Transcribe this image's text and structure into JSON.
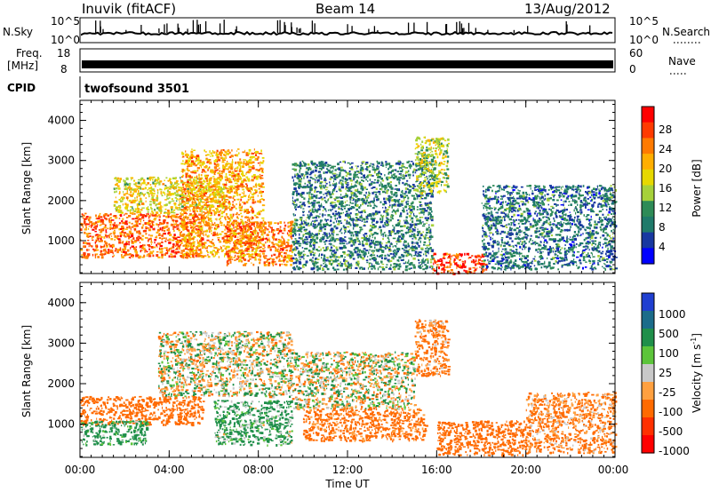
{
  "header": {
    "station": "Inuvik (fitACF)",
    "beam": "Beam 14",
    "date": "13/Aug/2012"
  },
  "top_panels": {
    "nsky_label": "N.Sky",
    "nsky_ticks": [
      "10^5",
      "10^0"
    ],
    "nsearch_label": "N.Search",
    "nsearch_ticks": [
      "10^5",
      "10^0"
    ],
    "freq_label": "Freq.",
    "freq_unit": "[MHz]",
    "freq_ticks": [
      "18",
      "8"
    ],
    "nave_label": "Nave",
    "nave_ticks": [
      "60",
      "0"
    ],
    "cpid_label": "CPID",
    "cpid_value": "twofsound 3501"
  },
  "x_axis": {
    "label": "Time UT",
    "ticks": [
      "00:00",
      "04:00",
      "08:00",
      "12:00",
      "16:00",
      "20:00",
      "00:00"
    ]
  },
  "y_axis": {
    "label": "Slant Range [km]",
    "ticks": [
      "4000",
      "3000",
      "2000",
      "1000"
    ]
  },
  "power_scale": {
    "label": "Power [dB]",
    "ticks": [
      "28",
      "24",
      "20",
      "16",
      "12",
      "8",
      "4"
    ],
    "colors": [
      "#ff0000",
      "#ff3a00",
      "#ff7a00",
      "#ffae00",
      "#e6d800",
      "#a6d13a",
      "#2e8b57",
      "#1f7a6a",
      "#1838a0",
      "#0000ff"
    ]
  },
  "velocity_scale": {
    "label": "Velocity [m s",
    "label_sup": "-1",
    "label_end": "]",
    "ticks": [
      "1000",
      "500",
      "100",
      "25",
      "-25",
      "-100",
      "-500",
      "-1000"
    ],
    "colors": [
      "#1f3fd0",
      "#1b6c8a",
      "#1f8f4a",
      "#5cc43a",
      "#c8c8c8",
      "#ffa040",
      "#ff6a00",
      "#ff3000",
      "#ff0000"
    ]
  },
  "chart_data": [
    {
      "type": "heatmap",
      "title": "Power",
      "xlabel": "Time UT",
      "ylabel": "Slant Range [km]",
      "x_range": [
        "00:00",
        "24:00"
      ],
      "y_range_km": [
        180,
        4500
      ],
      "colorbar": {
        "label": "Power [dB]",
        "range": [
          0,
          30
        ]
      },
      "regions": [
        {
          "t": [
            0,
            5.5
          ],
          "r": [
            600,
            1700
          ],
          "value": 25
        },
        {
          "t": [
            1.5,
            6.5
          ],
          "r": [
            1700,
            2600
          ],
          "value": 18
        },
        {
          "t": [
            4.5,
            8.2
          ],
          "r": [
            600,
            3300
          ],
          "value": 22
        },
        {
          "t": [
            6.5,
            9.5
          ],
          "r": [
            400,
            1500
          ],
          "value": 24
        },
        {
          "t": [
            9.5,
            15.8
          ],
          "r": [
            300,
            3000
          ],
          "value": 10
        },
        {
          "t": [
            15,
            16.5
          ],
          "r": [
            2200,
            3600
          ],
          "value": 16
        },
        {
          "t": [
            15.8,
            18.2
          ],
          "r": [
            200,
            700
          ],
          "value": 27
        },
        {
          "t": [
            18,
            24
          ],
          "r": [
            300,
            2400
          ],
          "value": 9
        }
      ]
    },
    {
      "type": "heatmap",
      "title": "Velocity",
      "xlabel": "Time UT",
      "ylabel": "Slant Range [km]",
      "x_range": [
        "00:00",
        "24:00"
      ],
      "y_range_km": [
        180,
        4500
      ],
      "colorbar": {
        "label": "Velocity [m s-1]",
        "range": [
          -1000,
          1000
        ]
      },
      "regions": [
        {
          "t": [
            0,
            5.5
          ],
          "r": [
            1000,
            1700
          ],
          "value": -300
        },
        {
          "t": [
            0,
            3
          ],
          "r": [
            500,
            1100
          ],
          "value": 150
        },
        {
          "t": [
            3.5,
            9.5
          ],
          "r": [
            1700,
            3300
          ],
          "value": 0
        },
        {
          "t": [
            6,
            9.5
          ],
          "r": [
            500,
            1600
          ],
          "value": 120
        },
        {
          "t": [
            9.5,
            15
          ],
          "r": [
            1400,
            2800
          ],
          "value": 0
        },
        {
          "t": [
            10,
            15.5
          ],
          "r": [
            600,
            1400
          ],
          "value": -200
        },
        {
          "t": [
            15,
            16.5
          ],
          "r": [
            2200,
            3600
          ],
          "value": -150
        },
        {
          "t": [
            16,
            20
          ],
          "r": [
            250,
            1100
          ],
          "value": -300
        },
        {
          "t": [
            20,
            24
          ],
          "r": [
            300,
            1800
          ],
          "value": -150
        }
      ]
    }
  ]
}
